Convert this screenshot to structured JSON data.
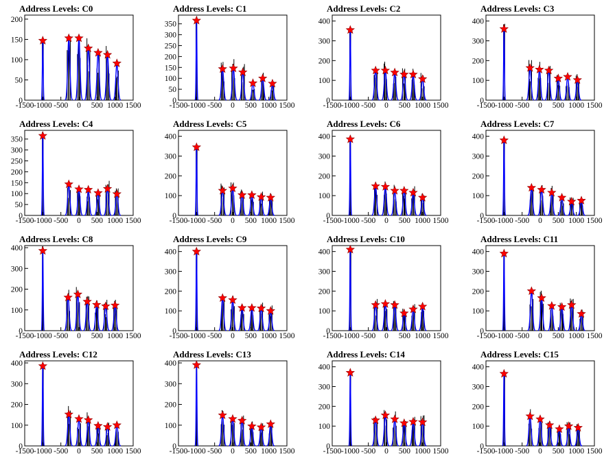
{
  "chart_data": [
    {
      "type": "histogram",
      "title": "Address Levels: C0",
      "xlim": [
        -1500,
        1500
      ],
      "ylim": [
        0,
        210
      ],
      "yticks": [
        0,
        50,
        100,
        150,
        200
      ],
      "xticks": [
        -1500,
        -1000,
        -500,
        0,
        500,
        1000,
        1500
      ],
      "peaks": [
        {
          "x": -1000,
          "y": 147
        },
        {
          "x": -280,
          "y": 153
        },
        {
          "x": 0,
          "y": 153
        },
        {
          "x": 260,
          "y": 128
        },
        {
          "x": 530,
          "y": 117
        },
        {
          "x": 790,
          "y": 112
        },
        {
          "x": 1050,
          "y": 91
        }
      ]
    },
    {
      "type": "histogram",
      "title": "Address Levels: C1",
      "xlim": [
        -1500,
        1500
      ],
      "ylim": [
        0,
        390
      ],
      "yticks": [
        0,
        50,
        100,
        150,
        200,
        250,
        300,
        350
      ],
      "xticks": [
        -1500,
        -1000,
        -500,
        0,
        500,
        1000,
        1500
      ],
      "peaks": [
        {
          "x": -1000,
          "y": 365
        },
        {
          "x": -280,
          "y": 143
        },
        {
          "x": 20,
          "y": 146
        },
        {
          "x": 280,
          "y": 128
        },
        {
          "x": 560,
          "y": 78
        },
        {
          "x": 830,
          "y": 100
        },
        {
          "x": 1100,
          "y": 76
        }
      ]
    },
    {
      "type": "histogram",
      "title": "Address Levels: C2",
      "xlim": [
        -1500,
        1500
      ],
      "ylim": [
        0,
        430
      ],
      "yticks": [
        0,
        100,
        200,
        300,
        400
      ],
      "xticks": [
        -1500,
        -1000,
        -500,
        0,
        500,
        1000,
        1500
      ],
      "peaks": [
        {
          "x": -1000,
          "y": 355
        },
        {
          "x": -300,
          "y": 150
        },
        {
          "x": -30,
          "y": 150
        },
        {
          "x": 230,
          "y": 140
        },
        {
          "x": 490,
          "y": 130
        },
        {
          "x": 740,
          "y": 130
        },
        {
          "x": 1000,
          "y": 107
        }
      ]
    },
    {
      "type": "histogram",
      "title": "Address Levels: C3",
      "xlim": [
        -1500,
        1500
      ],
      "ylim": [
        0,
        430
      ],
      "yticks": [
        0,
        100,
        200,
        300,
        400
      ],
      "xticks": [
        -1500,
        -1000,
        -500,
        0,
        500,
        1000,
        1500
      ],
      "peaks": [
        {
          "x": -1000,
          "y": 360
        },
        {
          "x": -280,
          "y": 163
        },
        {
          "x": -20,
          "y": 155
        },
        {
          "x": 240,
          "y": 150
        },
        {
          "x": 500,
          "y": 110
        },
        {
          "x": 760,
          "y": 118
        },
        {
          "x": 1030,
          "y": 102
        }
      ]
    },
    {
      "type": "histogram",
      "title": "Address Levels: C4",
      "xlim": [
        -1500,
        1500
      ],
      "ylim": [
        0,
        390
      ],
      "yticks": [
        0,
        50,
        100,
        150,
        200,
        250,
        300,
        350
      ],
      "xticks": [
        -1500,
        -1000,
        -500,
        0,
        500,
        1000,
        1500
      ],
      "peaks": [
        {
          "x": -1000,
          "y": 365
        },
        {
          "x": -280,
          "y": 143
        },
        {
          "x": 0,
          "y": 120
        },
        {
          "x": 260,
          "y": 118
        },
        {
          "x": 530,
          "y": 103
        },
        {
          "x": 790,
          "y": 122
        },
        {
          "x": 1050,
          "y": 98
        }
      ]
    },
    {
      "type": "histogram",
      "title": "Address Levels: C5",
      "xlim": [
        -1500,
        1500
      ],
      "ylim": [
        0,
        430
      ],
      "yticks": [
        0,
        100,
        200,
        300,
        400
      ],
      "xticks": [
        -1500,
        -1000,
        -500,
        0,
        500,
        1000,
        1500
      ],
      "peaks": [
        {
          "x": -1000,
          "y": 345
        },
        {
          "x": -280,
          "y": 125
        },
        {
          "x": 0,
          "y": 137
        },
        {
          "x": 260,
          "y": 103
        },
        {
          "x": 530,
          "y": 103
        },
        {
          "x": 790,
          "y": 93
        },
        {
          "x": 1050,
          "y": 90
        }
      ]
    },
    {
      "type": "histogram",
      "title": "Address Levels: C6",
      "xlim": [
        -1500,
        1500
      ],
      "ylim": [
        0,
        430
      ],
      "yticks": [
        0,
        100,
        200,
        300,
        400
      ],
      "xticks": [
        -1500,
        -1000,
        -500,
        0,
        500,
        1000,
        1500
      ],
      "peaks": [
        {
          "x": -1000,
          "y": 385
        },
        {
          "x": -300,
          "y": 148
        },
        {
          "x": -30,
          "y": 145
        },
        {
          "x": 230,
          "y": 125
        },
        {
          "x": 490,
          "y": 125
        },
        {
          "x": 740,
          "y": 115
        },
        {
          "x": 1000,
          "y": 90
        }
      ]
    },
    {
      "type": "histogram",
      "title": "Address Levels: C7",
      "xlim": [
        -1500,
        1500
      ],
      "ylim": [
        0,
        430
      ],
      "yticks": [
        0,
        100,
        200,
        300,
        400
      ],
      "xticks": [
        -1500,
        -1000,
        -500,
        0,
        500,
        1000,
        1500
      ],
      "peaks": [
        {
          "x": -1000,
          "y": 380
        },
        {
          "x": -240,
          "y": 140
        },
        {
          "x": 40,
          "y": 130
        },
        {
          "x": 320,
          "y": 115
        },
        {
          "x": 600,
          "y": 90
        },
        {
          "x": 870,
          "y": 70
        },
        {
          "x": 1140,
          "y": 75
        }
      ]
    },
    {
      "type": "histogram",
      "title": "Address Levels: C8",
      "xlim": [
        -1500,
        1500
      ],
      "ylim": [
        0,
        410
      ],
      "yticks": [
        0,
        100,
        200,
        300,
        400
      ],
      "xticks": [
        -1500,
        -1000,
        -500,
        0,
        500,
        1000,
        1500
      ],
      "peaks": [
        {
          "x": -1000,
          "y": 385
        },
        {
          "x": -300,
          "y": 160
        },
        {
          "x": -30,
          "y": 175
        },
        {
          "x": 230,
          "y": 140
        },
        {
          "x": 490,
          "y": 125
        },
        {
          "x": 740,
          "y": 118
        },
        {
          "x": 1000,
          "y": 122
        }
      ]
    },
    {
      "type": "histogram",
      "title": "Address Levels: C9",
      "xlim": [
        -1500,
        1500
      ],
      "ylim": [
        0,
        430
      ],
      "yticks": [
        0,
        100,
        200,
        300,
        400
      ],
      "xticks": [
        -1500,
        -1000,
        -500,
        0,
        500,
        1000,
        1500
      ],
      "peaks": [
        {
          "x": -1000,
          "y": 400
        },
        {
          "x": -280,
          "y": 165
        },
        {
          "x": 0,
          "y": 155
        },
        {
          "x": 260,
          "y": 115
        },
        {
          "x": 530,
          "y": 115
        },
        {
          "x": 790,
          "y": 113
        },
        {
          "x": 1050,
          "y": 100
        }
      ]
    },
    {
      "type": "histogram",
      "title": "Address Levels: C10",
      "xlim": [
        -1500,
        1500
      ],
      "ylim": [
        0,
        430
      ],
      "yticks": [
        0,
        100,
        200,
        300,
        400
      ],
      "xticks": [
        -1500,
        -1000,
        -500,
        0,
        500,
        1000,
        1500
      ],
      "peaks": [
        {
          "x": -1000,
          "y": 410
        },
        {
          "x": -300,
          "y": 130
        },
        {
          "x": -30,
          "y": 135
        },
        {
          "x": 230,
          "y": 130
        },
        {
          "x": 490,
          "y": 88
        },
        {
          "x": 740,
          "y": 108
        },
        {
          "x": 1000,
          "y": 122
        }
      ]
    },
    {
      "type": "histogram",
      "title": "Address Levels: C11",
      "xlim": [
        -1500,
        1500
      ],
      "ylim": [
        0,
        430
      ],
      "yticks": [
        0,
        100,
        200,
        300,
        400
      ],
      "xticks": [
        -1500,
        -1000,
        -500,
        0,
        500,
        1000,
        1500
      ],
      "peaks": [
        {
          "x": -1000,
          "y": 390
        },
        {
          "x": -240,
          "y": 200
        },
        {
          "x": 40,
          "y": 165
        },
        {
          "x": 320,
          "y": 125
        },
        {
          "x": 600,
          "y": 120
        },
        {
          "x": 870,
          "y": 130
        },
        {
          "x": 1140,
          "y": 85
        }
      ]
    },
    {
      "type": "histogram",
      "title": "Address Levels: C12",
      "xlim": [
        -1500,
        1500
      ],
      "ylim": [
        0,
        410
      ],
      "yticks": [
        0,
        100,
        200,
        300,
        400
      ],
      "xticks": [
        -1500,
        -1000,
        -500,
        0,
        500,
        1000,
        1500
      ],
      "peaks": [
        {
          "x": -1000,
          "y": 385
        },
        {
          "x": -280,
          "y": 152
        },
        {
          "x": 0,
          "y": 130
        },
        {
          "x": 260,
          "y": 125
        },
        {
          "x": 530,
          "y": 97
        },
        {
          "x": 790,
          "y": 92
        },
        {
          "x": 1050,
          "y": 100
        }
      ]
    },
    {
      "type": "histogram",
      "title": "Address Levels: C13",
      "xlim": [
        -1500,
        1500
      ],
      "ylim": [
        0,
        410
      ],
      "yticks": [
        0,
        100,
        200,
        300,
        400
      ],
      "xticks": [
        -1500,
        -1000,
        -500,
        0,
        500,
        1000,
        1500
      ],
      "peaks": [
        {
          "x": -1000,
          "y": 390
        },
        {
          "x": -280,
          "y": 148
        },
        {
          "x": 0,
          "y": 130
        },
        {
          "x": 260,
          "y": 122
        },
        {
          "x": 530,
          "y": 95
        },
        {
          "x": 790,
          "y": 90
        },
        {
          "x": 1050,
          "y": 105
        }
      ]
    },
    {
      "type": "histogram",
      "title": "Address Levels: C14",
      "xlim": [
        -1500,
        1500
      ],
      "ylim": [
        0,
        430
      ],
      "yticks": [
        0,
        100,
        200,
        300,
        400
      ],
      "xticks": [
        -1500,
        -1000,
        -500,
        0,
        500,
        1000,
        1500
      ],
      "peaks": [
        {
          "x": -1000,
          "y": 370
        },
        {
          "x": -300,
          "y": 130
        },
        {
          "x": -30,
          "y": 155
        },
        {
          "x": 230,
          "y": 135
        },
        {
          "x": 490,
          "y": 115
        },
        {
          "x": 740,
          "y": 122
        },
        {
          "x": 1000,
          "y": 120
        }
      ]
    },
    {
      "type": "histogram",
      "title": "Address Levels: C15",
      "xlim": [
        -1500,
        1500
      ],
      "ylim": [
        0,
        430
      ],
      "yticks": [
        0,
        100,
        200,
        300,
        400
      ],
      "xticks": [
        -1500,
        -1000,
        -500,
        0,
        500,
        1000,
        1500
      ],
      "peaks": [
        {
          "x": -1000,
          "y": 365
        },
        {
          "x": -280,
          "y": 150
        },
        {
          "x": 0,
          "y": 135
        },
        {
          "x": 260,
          "y": 105
        },
        {
          "x": 530,
          "y": 85
        },
        {
          "x": 790,
          "y": 100
        },
        {
          "x": 1050,
          "y": 92
        }
      ]
    }
  ],
  "colors": {
    "histogram": "#000000",
    "fit_line": "#0000ff",
    "marker_fill": "#ff0000",
    "axis": "#000000"
  },
  "marker_icon": "red-star-icon"
}
